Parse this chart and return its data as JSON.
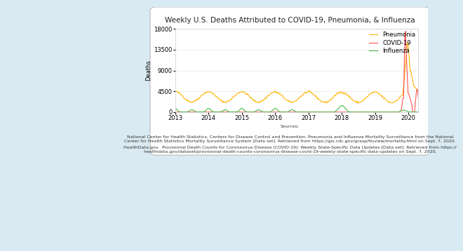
{
  "title": "Weekly U.S. Deaths Attributed to COVID-19, Pneumonia, & Influenza",
  "sources_label": "Sources:",
  "ylabel": "Deaths",
  "xlim": [
    2013.0,
    2020.3
  ],
  "ylim": [
    0,
    18000
  ],
  "yticks": [
    0,
    4500,
    9000,
    13500,
    18000
  ],
  "xticks": [
    2013,
    2014,
    2015,
    2016,
    2017,
    2018,
    2019,
    2020
  ],
  "pneumonia_color": "#FFB300",
  "covid_color": "#FF5555",
  "influenza_color": "#44BB44",
  "outer_background": "#daeaf2",
  "white_box_bg": "#ffffff",
  "title_fontsize": 7.5,
  "label_fontsize": 6,
  "tick_fontsize": 6,
  "source_fontsize": 4.5,
  "source1": "National Center for Health Statistics, Centers for Disease Control and Prevention. Pneumonia and Influenza Mortality Surveillance from the National\nCenter for Health Statistics Mortality Surveillance System [Data set]. Retrieved from https://gis.cdc.gov/grasp/fluview/mortality.html on Sept. 7, 2020.",
  "source2": "HealthData.gov.  Provisional Death Counts for Coronavirus Disease (COVID-19): Weekly State-Specific Data Updates [Data set]. Retrieved from https://\nhealthdata.gov/dataset/provisional-death-counts-coronavirus-disease-covid-19-weekly-state-specific-data-updates on Sept. 7, 2020."
}
